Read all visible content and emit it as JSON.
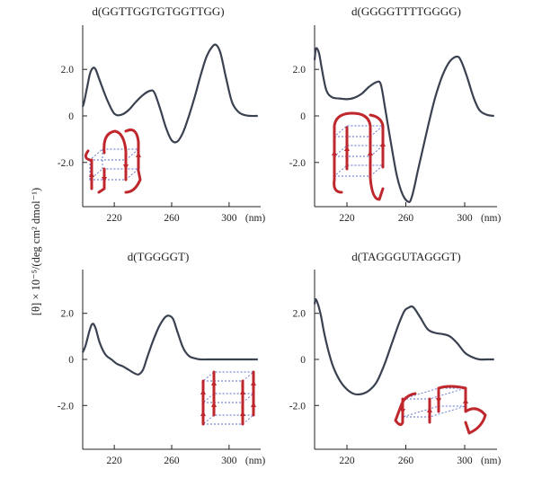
{
  "figure": {
    "ylabel": "[θ] × 10⁻⁵/(deg cm² dmol⁻¹)",
    "colors": {
      "curve": "#3a4150",
      "strand": "#c0272d",
      "grid": "#5a6fd0",
      "axis": "#222222"
    }
  },
  "chart_data": [
    {
      "type": "line",
      "title": "d(GGTTGGTGTGGTTGG)",
      "xlim": [
        198,
        322
      ],
      "ylim": [
        -3.9,
        3.9
      ],
      "xticks": [
        220,
        260,
        300
      ],
      "xtick_labels": [
        "220",
        "260",
        "300"
      ],
      "yticks": [
        2.0,
        0,
        -2.0
      ],
      "ytick_labels": [
        "2.0",
        "0",
        "-2.0"
      ],
      "x_unit": "(nm)",
      "series": [
        {
          "x": [
            198,
            199,
            201,
            203,
            205,
            207,
            210,
            215,
            220,
            225,
            230,
            235,
            240,
            245,
            248,
            252,
            256,
            260,
            264,
            268,
            272,
            276,
            280,
            284,
            288,
            291,
            294,
            298,
            302,
            306,
            310,
            315,
            320
          ],
          "y": [
            0.4,
            0.6,
            1.2,
            1.8,
            2.05,
            2.0,
            1.5,
            0.7,
            0.1,
            0.05,
            0.25,
            0.6,
            0.9,
            1.08,
            1.0,
            0.3,
            -0.5,
            -1.05,
            -1.1,
            -0.7,
            0.0,
            0.8,
            1.7,
            2.5,
            2.95,
            3.05,
            2.7,
            1.6,
            0.6,
            0.2,
            0.05,
            0.0,
            0.0
          ]
        }
      ],
      "inset": "antiparallel-chair-quadruplex-icon"
    },
    {
      "type": "line",
      "title": "d(GGGGTTTTGGGG)",
      "xlim": [
        198,
        322
      ],
      "ylim": [
        -3.9,
        3.9
      ],
      "xticks": [
        220,
        260,
        300
      ],
      "xtick_labels": [
        "220",
        "260",
        "300"
      ],
      "yticks": [
        2.0,
        0,
        -2.0
      ],
      "ytick_labels": [
        "2.0",
        "0",
        "-2.0"
      ],
      "x_unit": "(nm)",
      "series": [
        {
          "x": [
            198,
            199,
            201,
            203,
            206,
            210,
            215,
            220,
            225,
            230,
            235,
            240,
            243,
            246,
            250,
            254,
            258,
            262,
            264,
            266,
            268,
            272,
            276,
            280,
            285,
            290,
            295,
            298,
            302,
            306,
            310,
            315,
            320
          ],
          "y": [
            2.4,
            2.9,
            2.7,
            2.0,
            1.1,
            0.8,
            0.75,
            0.72,
            0.78,
            0.95,
            1.25,
            1.45,
            1.35,
            0.3,
            -1.2,
            -2.6,
            -3.4,
            -3.7,
            -3.5,
            -3.0,
            -2.4,
            -1.3,
            -0.2,
            0.8,
            1.75,
            2.35,
            2.55,
            2.3,
            1.6,
            0.8,
            0.25,
            0.05,
            0.0
          ]
        }
      ],
      "inset": "parallel-stranded-quadruplex-icon"
    },
    {
      "type": "line",
      "title": "d(TGGGGT)",
      "xlim": [
        198,
        322
      ],
      "ylim": [
        -3.9,
        3.9
      ],
      "xticks": [
        220,
        260,
        300
      ],
      "xtick_labels": [
        "220",
        "260",
        "300"
      ],
      "yticks": [
        2.0,
        0,
        -2.0
      ],
      "ytick_labels": [
        "2.0",
        "0",
        "-2.0"
      ],
      "x_unit": "(nm)",
      "series": [
        {
          "x": [
            198,
            200,
            203,
            205,
            207,
            210,
            214,
            218,
            222,
            226,
            230,
            234,
            237,
            240,
            243,
            247,
            251,
            255,
            258,
            261,
            264,
            268,
            272,
            276,
            280,
            285,
            290,
            300,
            310,
            320
          ],
          "y": [
            0.3,
            0.6,
            1.3,
            1.55,
            1.35,
            0.7,
            0.2,
            0.0,
            -0.2,
            -0.3,
            -0.45,
            -0.6,
            -0.65,
            -0.45,
            0.1,
            0.8,
            1.4,
            1.8,
            1.9,
            1.75,
            1.2,
            0.5,
            0.15,
            0.05,
            0.0,
            0.0,
            0.0,
            0.0,
            0.0,
            0.0
          ]
        }
      ],
      "inset": "tetramolecular-quadruplex-icon"
    },
    {
      "type": "line",
      "title": "d(TAGGGUTAGGGT)",
      "xlim": [
        198,
        322
      ],
      "ylim": [
        -3.9,
        3.9
      ],
      "xticks": [
        220,
        260,
        300
      ],
      "xtick_labels": [
        "220",
        "260",
        "300"
      ],
      "yticks": [
        2.0,
        0,
        -2.0
      ],
      "ytick_labels": [
        "2.0",
        "0",
        "-2.0"
      ],
      "x_unit": "(nm)",
      "series": [
        {
          "x": [
            198,
            199,
            202,
            205,
            210,
            215,
            220,
            225,
            230,
            235,
            240,
            245,
            250,
            255,
            259,
            262,
            264,
            266,
            270,
            275,
            280,
            285,
            290,
            295,
            300,
            305,
            310,
            315,
            320
          ],
          "y": [
            2.4,
            2.6,
            2.0,
            1.0,
            -0.2,
            -0.9,
            -1.3,
            -1.5,
            -1.5,
            -1.35,
            -1.0,
            -0.3,
            0.6,
            1.5,
            2.1,
            2.25,
            2.3,
            2.2,
            1.8,
            1.3,
            1.15,
            1.1,
            1.0,
            0.7,
            0.3,
            0.1,
            0.0,
            0.0,
            0.0
          ]
        }
      ],
      "inset": "dimeric-mixed-quadruplex-icon"
    }
  ]
}
